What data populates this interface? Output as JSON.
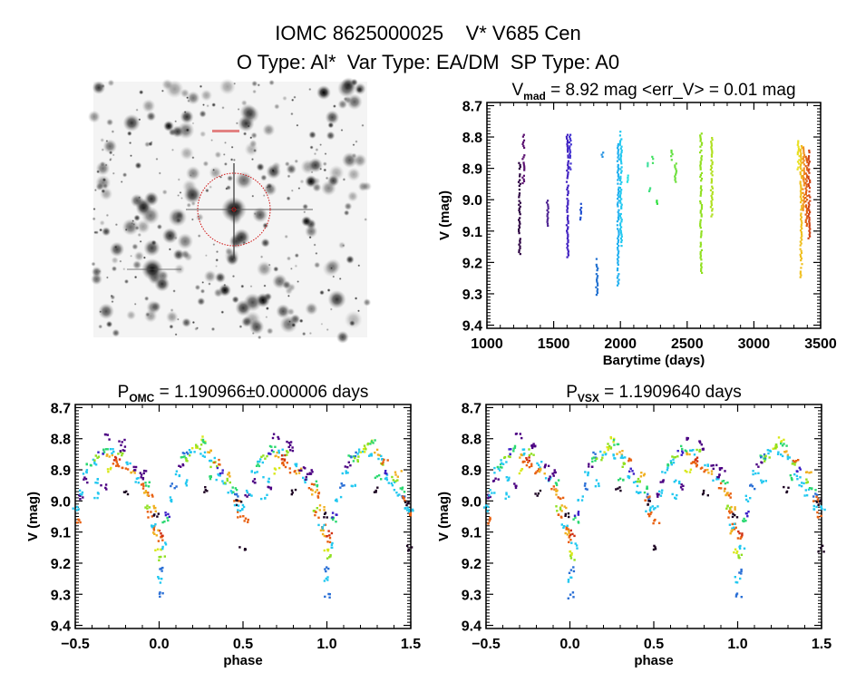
{
  "header": {
    "line1": "IOMC 8625000025    V* V685 Cen",
    "line2": "O Type: Al*  Var Type: EA/DM  SP Type: A0"
  },
  "colors": {
    "palette": [
      "#1a0020",
      "#4b0082",
      "#3b1fc8",
      "#2a6fd6",
      "#22c8f0",
      "#2ad870",
      "#8fe020",
      "#d8e818",
      "#f0b020",
      "#e86010",
      "#d03010"
    ],
    "finder_circle": "#d01010"
  },
  "finder_chart": {
    "type": "image",
    "content": "sky-field-star-image"
  },
  "chart_data": [
    {
      "type": "scatter",
      "title_main": "V",
      "title_sub": "mad",
      "title_rest": " = 8.92 mag <err_V> = 0.01 mag",
      "xlabel": "Barytime (days)",
      "ylabel": "V (mag)",
      "xlim": [
        1000,
        3500
      ],
      "ylim": [
        8.69,
        9.41
      ],
      "y_inverted": true,
      "xticks": [
        1000,
        1500,
        2000,
        2500,
        3000,
        3500
      ],
      "yticks": [
        8.7,
        8.8,
        8.9,
        9.0,
        9.1,
        9.2,
        9.3,
        9.4
      ],
      "segments": [
        {
          "t": 1240,
          "v": [
            8.88,
            9.17
          ],
          "c": "#2a0040"
        },
        {
          "t": 1270,
          "v": [
            8.79,
            8.95
          ],
          "c": "#5a1070"
        },
        {
          "t": 1450,
          "v": [
            9.0,
            9.08
          ],
          "c": "#4b2090"
        },
        {
          "t": 1600,
          "v": [
            8.79,
            9.18
          ],
          "c": "#4020c0"
        },
        {
          "t": 1620,
          "v": [
            8.79,
            8.9
          ],
          "c": "#4030d0"
        },
        {
          "t": 1700,
          "v": [
            9.01,
            9.06
          ],
          "c": "#2050d0"
        },
        {
          "t": 1820,
          "v": [
            9.18,
            9.3
          ],
          "c": "#2070d0"
        },
        {
          "t": 1860,
          "v": [
            8.84,
            8.86
          ],
          "c": "#2090e0"
        },
        {
          "t": 1980,
          "v": [
            8.82,
            9.27
          ],
          "c": "#20b0f0"
        },
        {
          "t": 2000,
          "v": [
            8.78,
            9.15
          ],
          "c": "#20c8f0"
        },
        {
          "t": 2050,
          "v": [
            8.92,
            8.94
          ],
          "c": "#20e0e0"
        },
        {
          "t": 2200,
          "v": [
            8.88,
            8.89
          ],
          "c": "#40e0a0"
        },
        {
          "t": 2215,
          "v": [
            8.96,
            8.97
          ],
          "c": "#40e080"
        },
        {
          "t": 2240,
          "v": [
            8.86,
            8.88
          ],
          "c": "#40e060"
        },
        {
          "t": 2270,
          "v": [
            9.0,
            9.01
          ],
          "c": "#30e040"
        },
        {
          "t": 2380,
          "v": [
            8.84,
            8.87
          ],
          "c": "#60e040"
        },
        {
          "t": 2410,
          "v": [
            8.87,
            8.94
          ],
          "c": "#70e040"
        },
        {
          "t": 2600,
          "v": [
            8.78,
            9.23
          ],
          "c": "#90e020"
        },
        {
          "t": 2680,
          "v": [
            8.8,
            9.05
          ],
          "c": "#b0e020"
        },
        {
          "t": 3330,
          "v": [
            8.81,
            8.9
          ],
          "c": "#e8e020"
        },
        {
          "t": 3350,
          "v": [
            8.82,
            9.25
          ],
          "c": "#f0c020"
        },
        {
          "t": 3370,
          "v": [
            8.83,
            9.03
          ],
          "c": "#f09020"
        },
        {
          "t": 3390,
          "v": [
            8.86,
            9.08
          ],
          "c": "#e06010"
        },
        {
          "t": 3410,
          "v": [
            8.84,
            9.12
          ],
          "c": "#d04010"
        }
      ]
    },
    {
      "type": "scatter",
      "title_main": "P",
      "title_sub": "OMC",
      "title_rest": " = 1.190966±0.000006 days",
      "xlabel": "phase",
      "ylabel": "V (mag)",
      "xlim": [
        -0.5,
        1.5
      ],
      "ylim": [
        8.69,
        9.41
      ],
      "y_inverted": true,
      "xticks": [
        -0.5,
        0.0,
        0.5,
        1.0,
        1.5
      ],
      "yticks": [
        8.7,
        8.8,
        8.9,
        9.0,
        9.1,
        9.2,
        9.3,
        9.4
      ]
    },
    {
      "type": "scatter",
      "title_main": "P",
      "title_sub": "VSX",
      "title_rest": " = 1.1909640 days",
      "xlabel": "phase",
      "ylabel": "V (mag)",
      "xlim": [
        -0.5,
        1.5
      ],
      "ylim": [
        8.69,
        9.41
      ],
      "y_inverted": true,
      "xticks": [
        -0.5,
        0.0,
        0.5,
        1.0,
        1.5
      ],
      "yticks": [
        8.7,
        8.8,
        8.9,
        9.0,
        9.1,
        9.2,
        9.3,
        9.4
      ]
    }
  ],
  "phase_points": [
    [
      0.0,
      9.12,
      9
    ],
    [
      0.0,
      9.22,
      3
    ],
    [
      0.0,
      9.3,
      3
    ],
    [
      0.01,
      9.18,
      6
    ],
    [
      -0.01,
      9.16,
      7
    ],
    [
      0.01,
      9.1,
      10
    ],
    [
      -0.02,
      9.08,
      9
    ],
    [
      0.02,
      9.14,
      4
    ],
    [
      -0.01,
      9.25,
      4
    ],
    [
      0.03,
      9.06,
      5
    ],
    [
      -0.04,
      9.02,
      8
    ],
    [
      0.04,
      9.04,
      2
    ],
    [
      -0.06,
      8.98,
      9
    ],
    [
      0.06,
      8.99,
      4
    ],
    [
      -0.08,
      8.94,
      5
    ],
    [
      0.08,
      8.95,
      3
    ],
    [
      -0.1,
      8.9,
      1
    ],
    [
      0.1,
      8.91,
      4
    ],
    [
      0.12,
      8.88,
      1
    ],
    [
      0.14,
      8.86,
      5
    ],
    [
      0.15,
      8.85,
      3
    ],
    [
      0.17,
      8.86,
      6
    ],
    [
      0.19,
      8.84,
      4
    ],
    [
      0.21,
      8.83,
      7
    ],
    [
      0.23,
      8.82,
      6
    ],
    [
      0.25,
      8.8,
      7
    ],
    [
      0.25,
      8.85,
      4
    ],
    [
      0.27,
      8.81,
      5
    ],
    [
      0.28,
      8.96,
      0
    ],
    [
      0.29,
      8.84,
      8
    ],
    [
      0.31,
      8.86,
      4
    ],
    [
      0.32,
      8.88,
      6
    ],
    [
      0.34,
      8.87,
      9
    ],
    [
      0.35,
      8.92,
      4
    ],
    [
      0.36,
      8.9,
      2
    ],
    [
      0.38,
      8.94,
      4
    ],
    [
      0.4,
      8.93,
      6
    ],
    [
      0.41,
      8.97,
      4
    ],
    [
      0.42,
      8.91,
      8
    ],
    [
      0.44,
      8.96,
      5
    ],
    [
      0.45,
      8.98,
      3
    ],
    [
      0.46,
      8.99,
      9
    ],
    [
      0.47,
      9.0,
      0
    ],
    [
      0.48,
      9.04,
      9
    ],
    [
      0.49,
      9.15,
      0
    ],
    [
      0.5,
      9.02,
      4
    ],
    [
      0.51,
      9.06,
      9
    ],
    [
      0.52,
      8.98,
      1
    ],
    [
      0.53,
      8.97,
      4
    ],
    [
      0.55,
      8.93,
      1
    ],
    [
      0.56,
      8.9,
      4
    ],
    [
      0.58,
      8.88,
      5
    ],
    [
      0.6,
      8.87,
      4
    ],
    [
      0.62,
      8.86,
      6
    ],
    [
      0.63,
      8.93,
      4
    ],
    [
      0.65,
      8.84,
      2
    ],
    [
      0.66,
      8.95,
      1
    ],
    [
      0.67,
      8.83,
      5
    ],
    [
      0.69,
      8.79,
      1
    ],
    [
      0.7,
      8.85,
      8
    ],
    [
      0.72,
      8.84,
      4
    ],
    [
      0.73,
      8.87,
      9
    ],
    [
      0.74,
      8.86,
      10
    ],
    [
      0.75,
      8.88,
      9
    ],
    [
      0.76,
      8.84,
      6
    ],
    [
      0.77,
      8.81,
      1
    ],
    [
      0.78,
      8.83,
      1
    ],
    [
      0.79,
      8.9,
      9
    ],
    [
      0.8,
      8.97,
      0
    ],
    [
      0.81,
      8.88,
      4
    ],
    [
      0.83,
      8.9,
      8
    ],
    [
      0.85,
      8.89,
      1
    ],
    [
      0.86,
      8.93,
      4
    ],
    [
      0.88,
      8.92,
      1
    ],
    [
      0.9,
      8.95,
      9
    ],
    [
      0.92,
      8.97,
      8
    ],
    [
      0.93,
      9.02,
      6
    ],
    [
      0.94,
      9.04,
      9
    ],
    [
      0.96,
      9.08,
      4
    ],
    [
      0.97,
      9.1,
      8
    ],
    [
      0.98,
      9.04,
      0
    ],
    [
      0.46,
      9.02,
      4
    ],
    [
      0.3,
      8.92,
      5
    ],
    [
      0.7,
      8.9,
      7
    ],
    [
      0.15,
      8.94,
      4
    ],
    [
      0.62,
      8.98,
      4
    ]
  ]
}
